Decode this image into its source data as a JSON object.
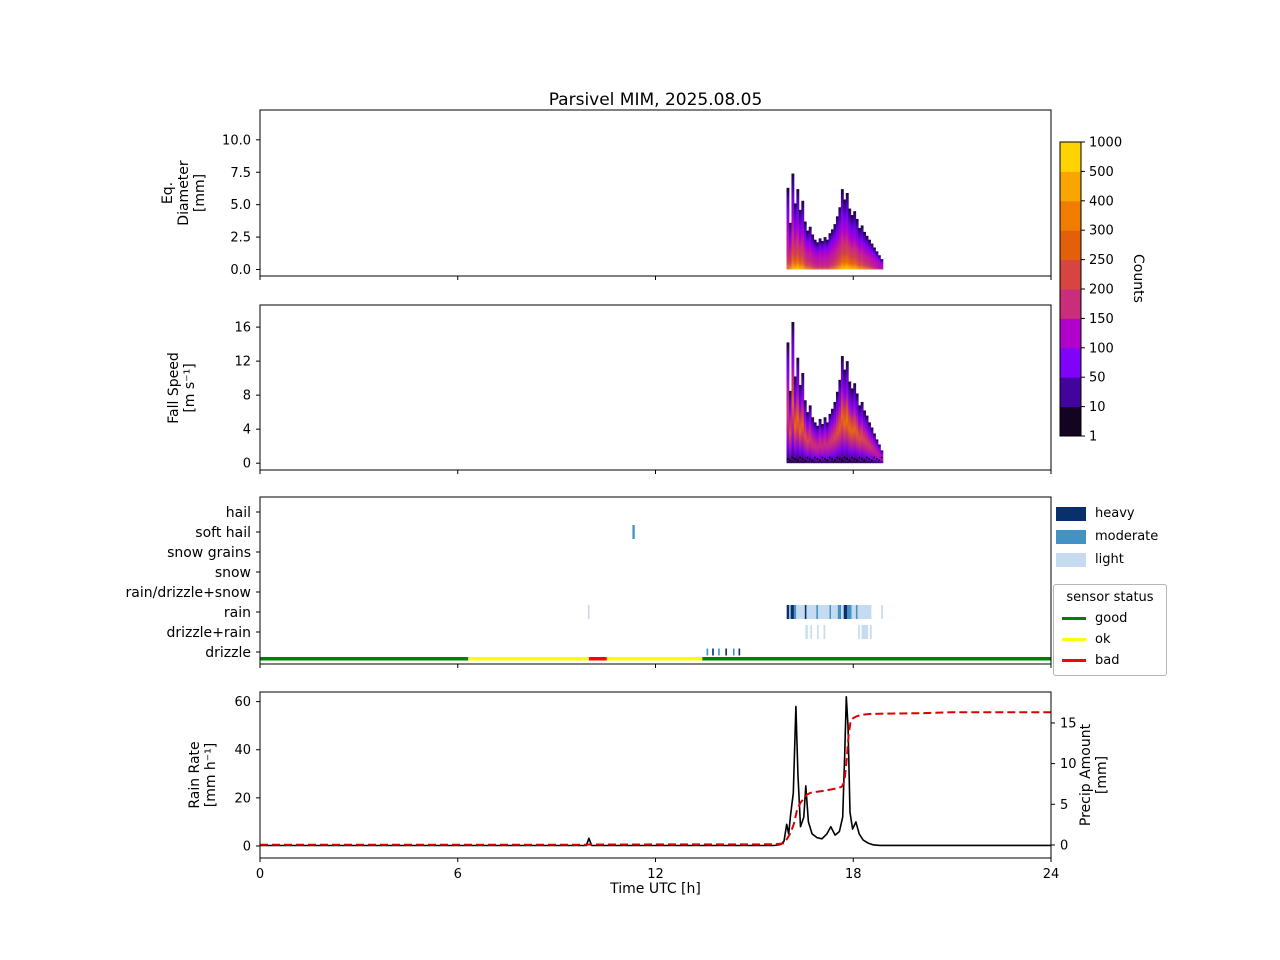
{
  "title": "Parsivel MIM, 2025.08.05",
  "xlabel": "Time UTC [h]",
  "x_ticks": [
    0,
    6,
    12,
    18,
    24
  ],
  "x_tick_labels": [
    "0",
    "6",
    "12",
    "18",
    "24"
  ],
  "colors": {
    "heavy": "#08306b",
    "moderate": "#4292c6",
    "light": "#c6dbef",
    "good": "#007f00",
    "ok": "#ffff00",
    "bad": "#ff0000",
    "rain_rate_line": "#000000",
    "precip_line": "#dd0000"
  },
  "colorbar": {
    "label": "Counts",
    "boundaries": [
      "1",
      "10",
      "50",
      "100",
      "150",
      "200",
      "250",
      "300",
      "400",
      "500",
      "1000"
    ],
    "segment_colors": [
      "#150421",
      "#41049d",
      "#7f03f8",
      "#b102cc",
      "#ca2d7b",
      "#d64541",
      "#e35f0a",
      "#f07d00",
      "#f9a602",
      "#ffd301"
    ]
  },
  "legend_classes": {
    "items": [
      {
        "label": "heavy",
        "color_key": "heavy"
      },
      {
        "label": "moderate",
        "color_key": "moderate"
      },
      {
        "label": "light",
        "color_key": "light"
      }
    ]
  },
  "legend_sensor": {
    "title": "sensor status",
    "items": [
      {
        "label": "good",
        "color_key": "good"
      },
      {
        "label": "ok",
        "color_key": "ok"
      },
      {
        "label": "bad",
        "color_key": "bad"
      }
    ]
  },
  "chart_data": [
    {
      "type": "heatmap",
      "id": "eq_diameter",
      "ylabel_lines": [
        "Eq.",
        "Diameter",
        "[mm]"
      ],
      "y_ticks": [
        0,
        2.5,
        5,
        7.5,
        10
      ],
      "y_tick_labels": [
        "0.0",
        "2.5",
        "5.0",
        "7.5",
        "10.0"
      ],
      "ylim": [
        -0.5,
        12.3
      ],
      "xlim": [
        0,
        24
      ],
      "columns_t0": 15.9,
      "columns_dt": 0.075,
      "col_top": [
        0,
        6.3,
        3.6,
        7.4,
        5.1,
        6.2,
        4.6,
        5.3,
        3.7,
        3.0,
        3.3,
        2.7,
        2.3,
        2.1,
        2.4,
        2.2,
        2.5,
        2.3,
        2.8,
        3.1,
        3.5,
        4.1,
        4.8,
        6.2,
        5.4,
        5.9,
        4.7,
        4.2,
        4.5,
        3.9,
        3.2,
        3.4,
        2.9,
        2.6,
        2.3,
        2.0,
        1.7,
        1.4,
        1.1,
        0.8
      ],
      "col_intensity": [
        0,
        0.5,
        0.7,
        0.85,
        0.9,
        0.95,
        0.9,
        0.85,
        0.7,
        0.6,
        0.55,
        0.45,
        0.4,
        0.35,
        0.4,
        0.35,
        0.4,
        0.35,
        0.45,
        0.5,
        0.6,
        0.7,
        0.8,
        0.9,
        0.95,
        1.0,
        0.95,
        0.9,
        0.9,
        0.85,
        0.7,
        0.7,
        0.6,
        0.55,
        0.5,
        0.4,
        0.3,
        0.25,
        0.15,
        0.1
      ]
    },
    {
      "type": "heatmap",
      "id": "fall_speed",
      "ylabel_lines": [
        "Fall Speed",
        "[m s⁻¹]"
      ],
      "y_ticks": [
        0,
        4,
        8,
        12,
        16
      ],
      "y_tick_labels": [
        "0",
        "4",
        "8",
        "12",
        "16"
      ],
      "ylim": [
        -0.8,
        18.6
      ],
      "xlim": [
        0,
        24
      ],
      "columns_t0": 15.9,
      "columns_dt": 0.075,
      "col_top": [
        0,
        14.2,
        8.5,
        16.6,
        10.2,
        12.4,
        9.2,
        10.6,
        7.4,
        6.0,
        6.8,
        5.4,
        4.8,
        4.4,
        5.2,
        4.6,
        5.4,
        4.8,
        5.8,
        6.4,
        7.2,
        8.4,
        9.8,
        12.6,
        11.0,
        12.0,
        9.6,
        8.8,
        9.4,
        8.2,
        6.8,
        7.2,
        6.2,
        5.6,
        4.8,
        4.2,
        3.5,
        2.8,
        2.2,
        1.5
      ],
      "col_intensity": [
        0,
        0.5,
        0.7,
        0.85,
        0.9,
        0.95,
        0.9,
        0.85,
        0.7,
        0.6,
        0.55,
        0.45,
        0.4,
        0.35,
        0.4,
        0.35,
        0.4,
        0.35,
        0.45,
        0.5,
        0.6,
        0.7,
        0.8,
        0.9,
        0.95,
        1.0,
        0.95,
        0.9,
        0.9,
        0.85,
        0.7,
        0.7,
        0.6,
        0.55,
        0.5,
        0.4,
        0.3,
        0.25,
        0.15,
        0.1
      ],
      "baseline_dots": true
    },
    {
      "type": "category",
      "id": "precip_type",
      "categories": [
        "hail",
        "soft hail",
        "snow grains",
        "snow",
        "rain/drizzle+snow",
        "rain",
        "drizzle+rain",
        "drizzle"
      ],
      "marks": [
        [
          1,
          11.3,
          11.37,
          "moderate"
        ],
        [
          5,
          9.95,
          10.0,
          "light"
        ],
        [
          5,
          15.98,
          16.06,
          "heavy"
        ],
        [
          5,
          16.06,
          16.1,
          "light"
        ],
        [
          5,
          16.1,
          16.2,
          "heavy"
        ],
        [
          5,
          16.2,
          16.27,
          "moderate"
        ],
        [
          5,
          16.27,
          16.53,
          "light"
        ],
        [
          5,
          16.53,
          16.58,
          "heavy"
        ],
        [
          5,
          16.58,
          16.88,
          "light"
        ],
        [
          5,
          16.88,
          16.93,
          "moderate"
        ],
        [
          5,
          16.93,
          17.28,
          "light"
        ],
        [
          5,
          17.28,
          17.33,
          "moderate"
        ],
        [
          5,
          17.33,
          17.53,
          "light"
        ],
        [
          5,
          17.53,
          17.63,
          "moderate"
        ],
        [
          5,
          17.63,
          17.71,
          "light"
        ],
        [
          5,
          17.71,
          17.82,
          "heavy"
        ],
        [
          5,
          17.82,
          17.95,
          "moderate"
        ],
        [
          5,
          17.95,
          18.08,
          "light"
        ],
        [
          5,
          18.08,
          18.13,
          "moderate"
        ],
        [
          5,
          18.13,
          18.55,
          "light"
        ],
        [
          5,
          18.85,
          18.9,
          "light"
        ],
        [
          6,
          16.55,
          16.62,
          "light"
        ],
        [
          6,
          16.7,
          16.75,
          "light"
        ],
        [
          6,
          16.9,
          16.94,
          "light"
        ],
        [
          6,
          17.1,
          17.14,
          "light"
        ],
        [
          6,
          18.15,
          18.2,
          "light"
        ],
        [
          6,
          18.25,
          18.45,
          "light"
        ],
        [
          6,
          18.5,
          18.56,
          "light"
        ],
        [
          7,
          13.55,
          13.59,
          "moderate"
        ],
        [
          7,
          13.72,
          13.75,
          "heavy"
        ],
        [
          7,
          13.9,
          13.93,
          "moderate"
        ],
        [
          7,
          14.12,
          14.15,
          "heavy"
        ],
        [
          7,
          14.35,
          14.38,
          "moderate"
        ],
        [
          7,
          14.52,
          14.55,
          "heavy"
        ]
      ],
      "status_segments": [
        [
          0,
          6.32,
          "good"
        ],
        [
          6.32,
          13.42,
          "ok"
        ],
        [
          9.98,
          10.52,
          "bad"
        ],
        [
          13.42,
          24,
          "good"
        ]
      ]
    },
    {
      "type": "line",
      "id": "rain_rate",
      "ylabel_lines": [
        "Rain Rate",
        "[mm h⁻¹]"
      ],
      "y_ticks_left": [
        0,
        20,
        40,
        60
      ],
      "y_tick_labels_left": [
        "0",
        "20",
        "40",
        "60"
      ],
      "ylim_left": [
        -5,
        64
      ],
      "right_ylabel_lines": [
        "Precip Amount",
        "[mm]"
      ],
      "y_ticks_right": [
        0,
        5,
        10,
        15
      ],
      "y_tick_labels_right": [
        "0",
        "5",
        "10",
        "15"
      ],
      "ylim_right": [
        -1.6,
        18.8
      ],
      "series": [
        {
          "name": "rain_rate",
          "axis": "left",
          "style": "solid",
          "color_key": "rain_rate_line",
          "points": [
            [
              0,
              0.2
            ],
            [
              9.9,
              0.2
            ],
            [
              9.98,
              3.2
            ],
            [
              10.06,
              0.2
            ],
            [
              15.6,
              0.2
            ],
            [
              15.8,
              0.6
            ],
            [
              15.9,
              2
            ],
            [
              15.98,
              9
            ],
            [
              16.04,
              5
            ],
            [
              16.1,
              13
            ],
            [
              16.18,
              22
            ],
            [
              16.26,
              58
            ],
            [
              16.32,
              30
            ],
            [
              16.4,
              8
            ],
            [
              16.5,
              12
            ],
            [
              16.56,
              25
            ],
            [
              16.64,
              10
            ],
            [
              16.75,
              5
            ],
            [
              16.9,
              3.5
            ],
            [
              17.05,
              3
            ],
            [
              17.2,
              5
            ],
            [
              17.32,
              8
            ],
            [
              17.45,
              4.5
            ],
            [
              17.58,
              6
            ],
            [
              17.68,
              12
            ],
            [
              17.74,
              38
            ],
            [
              17.79,
              62
            ],
            [
              17.84,
              50
            ],
            [
              17.9,
              14
            ],
            [
              17.98,
              7
            ],
            [
              18.08,
              10
            ],
            [
              18.18,
              5
            ],
            [
              18.3,
              2.5
            ],
            [
              18.45,
              1.2
            ],
            [
              18.6,
              0.5
            ],
            [
              18.8,
              0.25
            ],
            [
              24,
              0.25
            ]
          ]
        },
        {
          "name": "precip_amount",
          "axis": "right",
          "style": "dashed",
          "color_key": "precip_line",
          "points": [
            [
              0,
              0.02
            ],
            [
              9.9,
              0.02
            ],
            [
              10.0,
              0.06
            ],
            [
              15.6,
              0.08
            ],
            [
              15.9,
              0.2
            ],
            [
              16.0,
              0.8
            ],
            [
              16.1,
              1.5
            ],
            [
              16.2,
              2.6
            ],
            [
              16.3,
              4.4
            ],
            [
              16.4,
              5.2
            ],
            [
              16.5,
              5.7
            ],
            [
              16.6,
              6.2
            ],
            [
              16.7,
              6.4
            ],
            [
              16.9,
              6.55
            ],
            [
              17.1,
              6.65
            ],
            [
              17.3,
              6.8
            ],
            [
              17.5,
              6.95
            ],
            [
              17.65,
              7.15
            ],
            [
              17.73,
              7.8
            ],
            [
              17.8,
              10.5
            ],
            [
              17.86,
              13.5
            ],
            [
              17.92,
              15.2
            ],
            [
              18.0,
              15.6
            ],
            [
              18.1,
              15.8
            ],
            [
              18.25,
              16.0
            ],
            [
              18.5,
              16.1
            ],
            [
              19.0,
              16.15
            ],
            [
              20.0,
              16.2
            ],
            [
              21.0,
              16.3
            ],
            [
              24,
              16.3
            ]
          ]
        }
      ]
    }
  ]
}
